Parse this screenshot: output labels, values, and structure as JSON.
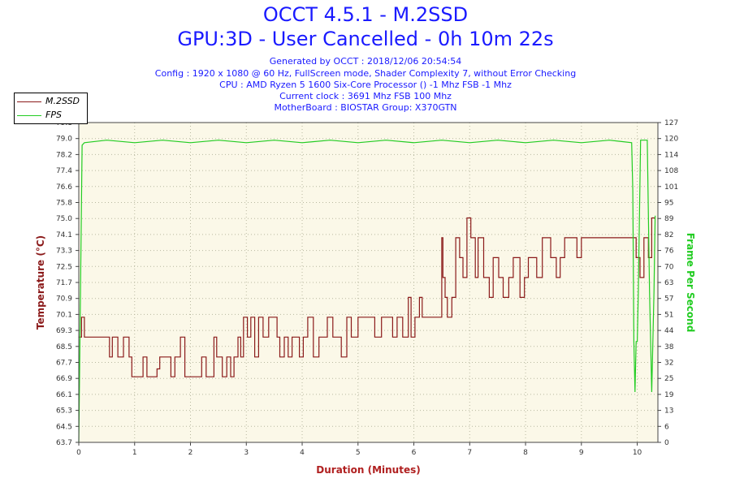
{
  "header": {
    "title": "OCCT 4.5.1 - M.2SSD",
    "subtitle": "GPU:3D - User Cancelled - 0h 10m 22s",
    "info": [
      "Generated by OCCT : 2018/12/06 20:54:54",
      "Config : 1920 x 1080 @ 60 Hz, FullScreen mode, Shader Complexity 7, without Error Checking",
      "CPU : AMD Ryzen 5 1600 Six-Core Processor () -1 Mhz FSB -1 Mhz",
      "Current clock : 3691 Mhz FSB 100 Mhz",
      "MotherBoard : BIOSTAR Group: X370GTN"
    ]
  },
  "chart_data": {
    "type": "line",
    "xlabel": "Duration (Minutes)",
    "ylabel": "Temperature (°C)",
    "y2label": "Frame Per Second",
    "xlim": [
      0,
      10.37
    ],
    "ylim": [
      63.7,
      79.8
    ],
    "y2lim": [
      0,
      127
    ],
    "x_ticks": [
      "0",
      "1",
      "2",
      "3",
      "4",
      "5",
      "6",
      "7",
      "8",
      "9",
      "10"
    ],
    "y_ticks": [
      "63.7",
      "64.5",
      "65.3",
      "66.1",
      "66.9",
      "67.7",
      "68.5",
      "69.3",
      "70.1",
      "70.9",
      "71.7",
      "72.5",
      "73.3",
      "74.1",
      "75.0",
      "75.8",
      "76.6",
      "77.4",
      "78.2",
      "79.0",
      "79.8"
    ],
    "y2_ticks": [
      "0",
      "6",
      "13",
      "19",
      "25",
      "32",
      "38",
      "44",
      "51",
      "57",
      "63",
      "70",
      "76",
      "82",
      "89",
      "95",
      "101",
      "108",
      "114",
      "120",
      "127"
    ],
    "grid": true,
    "legend_position": "top-left",
    "colors": {
      "temperature": "#8b1a1a",
      "fps": "#22cc22",
      "background": "#fbf8e8",
      "grid": "#b8b8a0"
    },
    "series": [
      {
        "name": "M.2SSD",
        "axis": "left",
        "points": [
          [
            0.0,
            69.0
          ],
          [
            0.05,
            69.0
          ],
          [
            0.05,
            70.0
          ],
          [
            0.1,
            70.0
          ],
          [
            0.1,
            69.0
          ],
          [
            0.55,
            69.0
          ],
          [
            0.55,
            68.0
          ],
          [
            0.6,
            68.0
          ],
          [
            0.6,
            69.0
          ],
          [
            0.7,
            69.0
          ],
          [
            0.7,
            68.0
          ],
          [
            0.8,
            68.0
          ],
          [
            0.8,
            69.0
          ],
          [
            0.9,
            69.0
          ],
          [
            0.9,
            68.0
          ],
          [
            0.95,
            68.0
          ],
          [
            0.95,
            67.0
          ],
          [
            1.15,
            67.0
          ],
          [
            1.15,
            68.0
          ],
          [
            1.22,
            68.0
          ],
          [
            1.22,
            67.0
          ],
          [
            1.4,
            67.0
          ],
          [
            1.4,
            67.4
          ],
          [
            1.45,
            67.4
          ],
          [
            1.45,
            68.0
          ],
          [
            1.65,
            68.0
          ],
          [
            1.65,
            67.0
          ],
          [
            1.72,
            67.0
          ],
          [
            1.72,
            68.0
          ],
          [
            1.82,
            68.0
          ],
          [
            1.82,
            69.0
          ],
          [
            1.9,
            69.0
          ],
          [
            1.9,
            67.0
          ],
          [
            2.2,
            67.0
          ],
          [
            2.2,
            68.0
          ],
          [
            2.28,
            68.0
          ],
          [
            2.28,
            67.0
          ],
          [
            2.42,
            67.0
          ],
          [
            2.42,
            69.0
          ],
          [
            2.47,
            69.0
          ],
          [
            2.47,
            68.0
          ],
          [
            2.57,
            68.0
          ],
          [
            2.57,
            67.0
          ],
          [
            2.65,
            67.0
          ],
          [
            2.65,
            68.0
          ],
          [
            2.72,
            68.0
          ],
          [
            2.72,
            67.0
          ],
          [
            2.78,
            67.0
          ],
          [
            2.78,
            68.0
          ],
          [
            2.85,
            68.0
          ],
          [
            2.85,
            69.0
          ],
          [
            2.9,
            69.0
          ],
          [
            2.9,
            68.0
          ],
          [
            2.95,
            68.0
          ],
          [
            2.95,
            70.0
          ],
          [
            3.02,
            70.0
          ],
          [
            3.02,
            69.0
          ],
          [
            3.08,
            69.0
          ],
          [
            3.08,
            70.0
          ],
          [
            3.15,
            70.0
          ],
          [
            3.15,
            68.0
          ],
          [
            3.22,
            68.0
          ],
          [
            3.22,
            70.0
          ],
          [
            3.3,
            70.0
          ],
          [
            3.3,
            69.0
          ],
          [
            3.4,
            69.0
          ],
          [
            3.4,
            70.0
          ],
          [
            3.55,
            70.0
          ],
          [
            3.55,
            69.0
          ],
          [
            3.6,
            69.0
          ],
          [
            3.6,
            68.0
          ],
          [
            3.68,
            68.0
          ],
          [
            3.68,
            69.0
          ],
          [
            3.75,
            69.0
          ],
          [
            3.75,
            68.0
          ],
          [
            3.82,
            68.0
          ],
          [
            3.82,
            69.0
          ],
          [
            3.95,
            69.0
          ],
          [
            3.95,
            68.0
          ],
          [
            4.02,
            68.0
          ],
          [
            4.02,
            69.0
          ],
          [
            4.1,
            69.0
          ],
          [
            4.1,
            70.0
          ],
          [
            4.2,
            70.0
          ],
          [
            4.2,
            68.0
          ],
          [
            4.3,
            68.0
          ],
          [
            4.3,
            69.0
          ],
          [
            4.45,
            69.0
          ],
          [
            4.45,
            70.0
          ],
          [
            4.55,
            70.0
          ],
          [
            4.55,
            69.0
          ],
          [
            4.7,
            69.0
          ],
          [
            4.7,
            68.0
          ],
          [
            4.8,
            68.0
          ],
          [
            4.8,
            70.0
          ],
          [
            4.88,
            70.0
          ],
          [
            4.88,
            69.0
          ],
          [
            5.0,
            69.0
          ],
          [
            5.0,
            70.0
          ],
          [
            5.3,
            70.0
          ],
          [
            5.3,
            69.0
          ],
          [
            5.42,
            69.0
          ],
          [
            5.42,
            70.0
          ],
          [
            5.62,
            70.0
          ],
          [
            5.62,
            69.0
          ],
          [
            5.7,
            69.0
          ],
          [
            5.7,
            70.0
          ],
          [
            5.8,
            70.0
          ],
          [
            5.8,
            69.0
          ],
          [
            5.9,
            69.0
          ],
          [
            5.9,
            71.0
          ],
          [
            5.95,
            71.0
          ],
          [
            5.95,
            69.0
          ],
          [
            6.02,
            69.0
          ],
          [
            6.02,
            70.0
          ],
          [
            6.1,
            70.0
          ],
          [
            6.1,
            71.0
          ],
          [
            6.15,
            71.0
          ],
          [
            6.15,
            70.0
          ],
          [
            6.5,
            70.0
          ],
          [
            6.5,
            74.0
          ],
          [
            6.52,
            74.0
          ],
          [
            6.52,
            72.0
          ],
          [
            6.56,
            72.0
          ],
          [
            6.56,
            71.0
          ],
          [
            6.6,
            71.0
          ],
          [
            6.6,
            70.0
          ],
          [
            6.68,
            70.0
          ],
          [
            6.68,
            71.0
          ],
          [
            6.75,
            71.0
          ],
          [
            6.75,
            74.0
          ],
          [
            6.82,
            74.0
          ],
          [
            6.82,
            73.0
          ],
          [
            6.88,
            73.0
          ],
          [
            6.88,
            72.0
          ],
          [
            6.95,
            72.0
          ],
          [
            6.95,
            75.0
          ],
          [
            7.02,
            75.0
          ],
          [
            7.02,
            74.0
          ],
          [
            7.1,
            74.0
          ],
          [
            7.1,
            72.0
          ],
          [
            7.15,
            72.0
          ],
          [
            7.15,
            74.0
          ],
          [
            7.25,
            74.0
          ],
          [
            7.25,
            72.0
          ],
          [
            7.35,
            72.0
          ],
          [
            7.35,
            71.0
          ],
          [
            7.42,
            71.0
          ],
          [
            7.42,
            73.0
          ],
          [
            7.52,
            73.0
          ],
          [
            7.52,
            72.0
          ],
          [
            7.6,
            72.0
          ],
          [
            7.6,
            71.0
          ],
          [
            7.7,
            71.0
          ],
          [
            7.7,
            72.0
          ],
          [
            7.78,
            72.0
          ],
          [
            7.78,
            73.0
          ],
          [
            7.9,
            73.0
          ],
          [
            7.9,
            71.0
          ],
          [
            7.98,
            71.0
          ],
          [
            7.98,
            72.0
          ],
          [
            8.05,
            72.0
          ],
          [
            8.05,
            73.0
          ],
          [
            8.2,
            73.0
          ],
          [
            8.2,
            72.0
          ],
          [
            8.3,
            72.0
          ],
          [
            8.3,
            74.0
          ],
          [
            8.45,
            74.0
          ],
          [
            8.45,
            73.0
          ],
          [
            8.55,
            73.0
          ],
          [
            8.55,
            72.0
          ],
          [
            8.62,
            72.0
          ],
          [
            8.62,
            73.0
          ],
          [
            8.7,
            73.0
          ],
          [
            8.7,
            74.0
          ],
          [
            8.92,
            74.0
          ],
          [
            8.92,
            73.0
          ],
          [
            9.0,
            73.0
          ],
          [
            9.0,
            74.0
          ],
          [
            9.98,
            74.0
          ],
          [
            9.98,
            73.0
          ],
          [
            10.05,
            73.0
          ],
          [
            10.05,
            72.0
          ],
          [
            10.12,
            72.0
          ],
          [
            10.12,
            74.0
          ],
          [
            10.2,
            74.0
          ],
          [
            10.2,
            73.0
          ],
          [
            10.26,
            73.0
          ],
          [
            10.26,
            75.0
          ],
          [
            10.32,
            75.0
          ]
        ]
      },
      {
        "name": "FPS",
        "axis": "right",
        "points": [
          [
            0.0,
            0.0
          ],
          [
            0.03,
            60.0
          ],
          [
            0.06,
            118.0
          ],
          [
            0.1,
            119.0
          ],
          [
            0.5,
            120.0
          ],
          [
            1.0,
            119.0
          ],
          [
            1.5,
            120.0
          ],
          [
            2.0,
            119.0
          ],
          [
            2.5,
            120.0
          ],
          [
            3.0,
            119.0
          ],
          [
            3.5,
            120.0
          ],
          [
            4.0,
            119.0
          ],
          [
            4.5,
            120.0
          ],
          [
            5.0,
            119.0
          ],
          [
            5.5,
            120.0
          ],
          [
            6.0,
            119.0
          ],
          [
            6.5,
            120.0
          ],
          [
            7.0,
            119.0
          ],
          [
            7.5,
            120.0
          ],
          [
            8.0,
            119.0
          ],
          [
            8.5,
            120.0
          ],
          [
            9.0,
            119.0
          ],
          [
            9.5,
            120.0
          ],
          [
            9.9,
            119.0
          ],
          [
            9.92,
            100.0
          ],
          [
            9.94,
            40.0
          ],
          [
            9.96,
            20.0
          ],
          [
            9.98,
            40.0
          ],
          [
            10.0,
            40.0
          ],
          [
            10.02,
            60.0
          ],
          [
            10.06,
            120.0
          ],
          [
            10.18,
            120.0
          ],
          [
            10.22,
            60.0
          ],
          [
            10.26,
            20.0
          ],
          [
            10.3,
            60.0
          ],
          [
            10.32,
            90.0
          ]
        ]
      }
    ]
  }
}
